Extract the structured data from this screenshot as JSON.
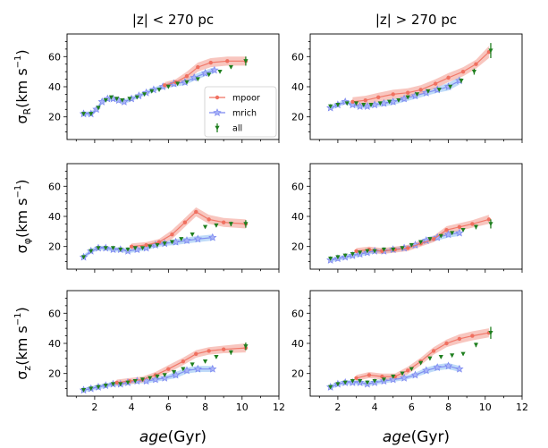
{
  "chart_data": {
    "type": "line",
    "column_titles": [
      "|z| < 270 pc",
      "|z| > 270 pc"
    ],
    "row_ylabels": [
      {
        "sym": "σ",
        "sub": "R",
        "unit": "(km s",
        "sup": "−1",
        "close": ")"
      },
      {
        "sym": "σ",
        "sub": "φ",
        "unit": "(km s",
        "sup": "−1",
        "close": ")"
      },
      {
        "sym": "σ",
        "sub": "z",
        "unit": "(km s",
        "sup": "−1",
        "close": ")"
      }
    ],
    "xlabel": {
      "var": "age",
      "unit": "(Gyr)"
    },
    "xlim": [
      0.5,
      12
    ],
    "ylim": [
      5,
      75
    ],
    "xticks": [
      2,
      4,
      6,
      8,
      10,
      12
    ],
    "yticks": [
      20,
      40,
      60
    ],
    "legend": {
      "placement": "inside lower-right of first panel",
      "entries": [
        "mpoor",
        "mrich",
        "all"
      ]
    },
    "colors": {
      "mpoor": "#f07060",
      "mpoor_band": "#f4a89c",
      "mrich": "#7a86f0",
      "mrich_band": "#9cc8f4",
      "all": "#1f7f1f"
    },
    "panels": [
      {
        "row": 0,
        "col": 0,
        "series": [
          {
            "name": "mpoor",
            "x": [
              5.8,
              6.4,
              7.0,
              7.6,
              8.3,
              9.2,
              10.2
            ],
            "y": [
              41,
              43,
              47,
              53,
              56,
              57,
              57
            ],
            "err": [
              2,
              2,
              3,
              3,
              3,
              3,
              3
            ]
          },
          {
            "name": "mrich",
            "x": [
              1.4,
              1.8,
              2.1,
              2.4,
              2.7,
              3.0,
              3.3,
              3.6,
              4.0,
              4.4,
              4.8,
              5.2,
              5.7,
              6.3,
              6.9,
              7.4,
              8.0,
              8.5
            ],
            "y": [
              22,
              22,
              25,
              30,
              32,
              32,
              31,
              30,
              32,
              34,
              36,
              38,
              40,
              42,
              43,
              46,
              49,
              51
            ],
            "err": [
              1.5,
              1.5,
              1.5,
              1.5,
              1.5,
              1.5,
              1.5,
              1.5,
              1.5,
              1.5,
              1.5,
              1.5,
              1.5,
              2,
              2,
              2,
              2,
              2
            ]
          },
          {
            "name": "all",
            "x": [
              1.4,
              1.8,
              2.2,
              2.6,
              2.9,
              3.2,
              3.5,
              3.9,
              4.3,
              4.7,
              5.1,
              5.5,
              6.0,
              6.5,
              7.0,
              7.6,
              8.2,
              8.8,
              9.4,
              10.2
            ],
            "y": [
              22,
              22,
              26,
              31,
              33,
              32,
              31,
              32,
              33,
              35,
              37,
              38,
              40,
              42,
              43,
              45,
              48,
              50,
              53,
              57
            ],
            "err": [
              0.5,
              0.5,
              0.5,
              0.5,
              0.5,
              0.5,
              0.5,
              0.5,
              0.5,
              0.5,
              0.5,
              0.5,
              0.5,
              0.5,
              0.5,
              0.5,
              0.5,
              0.5,
              1,
              3
            ]
          }
        ]
      },
      {
        "row": 0,
        "col": 1,
        "series": [
          {
            "name": "mpoor",
            "x": [
              2.8,
              3.5,
              4.2,
              5.0,
              5.8,
              6.5,
              7.3,
              8.0,
              8.8,
              9.5,
              10.2
            ],
            "y": [
              30,
              31,
              33,
              35,
              36,
              38,
              42,
              46,
              50,
              55,
              63
            ],
            "err": [
              3,
              3,
              3,
              3,
              3,
              3,
              3,
              3,
              3,
              3,
              4
            ]
          },
          {
            "name": "mrich",
            "x": [
              1.6,
              2.0,
              2.4,
              2.8,
              3.2,
              3.6,
              4.0,
              4.5,
              5.0,
              5.6,
              6.2,
              6.8,
              7.4,
              8.0,
              8.6
            ],
            "y": [
              26,
              28,
              30,
              28,
              27,
              27,
              28,
              29,
              30,
              32,
              34,
              36,
              38,
              40,
              44
            ],
            "err": [
              1.5,
              1.5,
              1.5,
              1.5,
              1.5,
              1.5,
              1.5,
              2,
              2,
              2,
              2,
              2,
              2,
              2.5,
              2.5
            ]
          },
          {
            "name": "all",
            "x": [
              1.6,
              2.0,
              2.5,
              3.0,
              3.4,
              3.8,
              4.3,
              4.8,
              5.3,
              5.8,
              6.3,
              6.9,
              7.5,
              8.1,
              8.7,
              9.4,
              10.3
            ],
            "y": [
              27,
              28,
              29,
              29,
              28,
              28,
              29,
              30,
              31,
              33,
              35,
              37,
              38,
              40,
              44,
              50,
              64
            ],
            "err": [
              1,
              1,
              1,
              1,
              1,
              1,
              1,
              1,
              1,
              1,
              1,
              1,
              1,
              1,
              1.5,
              2,
              5
            ]
          }
        ]
      },
      {
        "row": 1,
        "col": 0,
        "series": [
          {
            "name": "mpoor",
            "x": [
              4.0,
              4.8,
              5.5,
              6.2,
              6.9,
              7.5,
              8.2,
              9.0,
              10.2
            ],
            "y": [
              20,
              21,
              23,
              28,
              36,
              43,
              38,
              36,
              35
            ],
            "err": [
              2,
              2,
              2,
              3,
              3,
              3,
              3,
              3,
              3
            ]
          },
          {
            "name": "mrich",
            "x": [
              1.4,
              1.8,
              2.2,
              2.6,
              3.0,
              3.4,
              3.8,
              4.3,
              4.8,
              5.3,
              5.8,
              6.4,
              7.0,
              7.6,
              8.4
            ],
            "y": [
              13,
              17,
              19,
              19,
              18,
              18,
              17,
              18,
              19,
              21,
              22,
              23,
              24,
              25,
              26
            ],
            "err": [
              1.5,
              1.5,
              1.5,
              1.5,
              1.5,
              1.5,
              1.5,
              1.5,
              1.5,
              1.5,
              1.5,
              2,
              2,
              2,
              2
            ]
          },
          {
            "name": "all",
            "x": [
              1.4,
              1.8,
              2.2,
              2.6,
              3.0,
              3.4,
              3.8,
              4.2,
              4.6,
              5.0,
              5.4,
              5.8,
              6.2,
              6.7,
              7.3,
              8.0,
              8.6,
              9.4,
              10.2
            ],
            "y": [
              13,
              17,
              19,
              19,
              19,
              18,
              18,
              19,
              19,
              20,
              21,
              22,
              23,
              25,
              28,
              33,
              34,
              35,
              35
            ],
            "err": [
              0.5,
              0.5,
              0.5,
              0.5,
              0.5,
              0.5,
              0.5,
              0.5,
              0.5,
              0.5,
              0.5,
              0.5,
              0.5,
              0.5,
              0.5,
              1,
              1,
              1.5,
              2.5
            ]
          }
        ]
      },
      {
        "row": 1,
        "col": 1,
        "series": [
          {
            "name": "mpoor",
            "x": [
              3.0,
              3.7,
              4.4,
              5.1,
              5.8,
              6.5,
              7.2,
              7.9,
              8.6,
              9.3,
              10.2
            ],
            "y": [
              17,
              18,
              17,
              18,
              19,
              22,
              25,
              31,
              33,
              35,
              38
            ],
            "err": [
              2,
              2,
              2,
              2,
              2,
              2,
              2,
              2.5,
              2.5,
              2.5,
              3
            ]
          },
          {
            "name": "mrich",
            "x": [
              1.6,
              2.0,
              2.4,
              2.8,
              3.2,
              3.6,
              4.0,
              4.5,
              5.0,
              5.6,
              6.2,
              6.8,
              7.4,
              8.0,
              8.6
            ],
            "y": [
              11,
              12,
              13,
              14,
              15,
              16,
              17,
              17,
              18,
              19,
              21,
              24,
              26,
              28,
              29
            ],
            "err": [
              1.5,
              1.5,
              1.5,
              1.5,
              1.5,
              1.5,
              1.5,
              1.5,
              1.5,
              1.5,
              1.5,
              2,
              2,
              2,
              2
            ]
          },
          {
            "name": "all",
            "x": [
              1.6,
              2.0,
              2.4,
              2.8,
              3.2,
              3.6,
              4.0,
              4.5,
              5.0,
              5.5,
              6.0,
              6.5,
              7.0,
              7.6,
              8.2,
              8.8,
              9.5,
              10.3
            ],
            "y": [
              12,
              13,
              14,
              15,
              16,
              17,
              17,
              18,
              18,
              19,
              21,
              23,
              25,
              27,
              29,
              31,
              33,
              35
            ],
            "err": [
              0.5,
              0.5,
              0.5,
              0.5,
              0.5,
              0.5,
              0.5,
              0.5,
              0.5,
              0.5,
              0.5,
              0.5,
              0.5,
              0.5,
              1,
              1,
              1.5,
              3
            ]
          }
        ]
      },
      {
        "row": 2,
        "col": 0,
        "series": [
          {
            "name": "mpoor",
            "x": [
              3.2,
              3.9,
              4.6,
              5.3,
              6.0,
              6.8,
              7.5,
              8.2,
              9.0,
              10.2
            ],
            "y": [
              14,
              15,
              16,
              19,
              23,
              28,
              33,
              35,
              36,
              37
            ],
            "err": [
              2,
              2,
              2,
              2,
              2.5,
              2.5,
              2.5,
              2.5,
              2.5,
              3
            ]
          },
          {
            "name": "mrich",
            "x": [
              1.4,
              1.8,
              2.2,
              2.6,
              3.0,
              3.4,
              3.8,
              4.3,
              4.8,
              5.3,
              5.8,
              6.4,
              7.0,
              7.6,
              8.4
            ],
            "y": [
              9,
              10,
              11,
              12,
              13,
              13,
              14,
              15,
              15,
              16,
              17,
              19,
              22,
              23,
              23
            ],
            "err": [
              1.5,
              1.5,
              1.5,
              1.5,
              1.5,
              1.5,
              1.5,
              1.5,
              1.5,
              1.5,
              1.5,
              2,
              2,
              2,
              2
            ]
          },
          {
            "name": "all",
            "x": [
              1.4,
              1.8,
              2.2,
              2.6,
              3.0,
              3.4,
              3.8,
              4.2,
              4.6,
              5.0,
              5.4,
              5.8,
              6.3,
              6.8,
              7.3,
              8.0,
              8.6,
              9.4,
              10.2
            ],
            "y": [
              9,
              10,
              11,
              12,
              13,
              13,
              14,
              15,
              16,
              17,
              18,
              19,
              21,
              23,
              26,
              28,
              31,
              34,
              38
            ],
            "err": [
              0.5,
              0.5,
              0.5,
              0.5,
              0.5,
              0.5,
              0.5,
              0.5,
              0.5,
              0.5,
              0.5,
              0.5,
              0.5,
              0.5,
              1,
              1,
              1,
              1.5,
              2.5
            ]
          }
        ]
      },
      {
        "row": 2,
        "col": 1,
        "series": [
          {
            "name": "mpoor",
            "x": [
              3.0,
              3.7,
              4.4,
              5.1,
              5.8,
              6.5,
              7.2,
              7.9,
              8.6,
              9.3,
              10.2
            ],
            "y": [
              17,
              19,
              18,
              18,
              22,
              28,
              35,
              40,
              43,
              45,
              47
            ],
            "err": [
              2,
              2,
              2,
              2,
              2.5,
              2.5,
              2.5,
              2.5,
              3,
              3,
              3
            ]
          },
          {
            "name": "mrich",
            "x": [
              1.6,
              2.0,
              2.4,
              2.8,
              3.2,
              3.6,
              4.0,
              4.5,
              5.0,
              5.6,
              6.2,
              6.8,
              7.4,
              8.0,
              8.6
            ],
            "y": [
              11,
              13,
              14,
              14,
              14,
              13,
              14,
              15,
              16,
              17,
              19,
              22,
              24,
              25,
              23
            ],
            "err": [
              1.5,
              1.5,
              1.5,
              1.5,
              1.5,
              1.5,
              1.5,
              1.5,
              1.5,
              1.5,
              1.5,
              2,
              2,
              2,
              2
            ]
          },
          {
            "name": "all",
            "x": [
              1.6,
              2.0,
              2.4,
              2.8,
              3.2,
              3.6,
              4.0,
              4.5,
              5.0,
              5.5,
              6.0,
              6.5,
              7.0,
              7.6,
              8.2,
              8.8,
              9.5,
              10.3
            ],
            "y": [
              11,
              13,
              14,
              15,
              15,
              14,
              15,
              16,
              18,
              20,
              23,
              27,
              30,
              31,
              32,
              33,
              39,
              47
            ],
            "err": [
              0.5,
              0.5,
              0.5,
              0.5,
              0.5,
              0.5,
              0.5,
              0.5,
              0.5,
              0.5,
              0.5,
              0.5,
              1,
              1,
              1,
              1,
              1.5,
              4
            ]
          }
        ]
      }
    ]
  }
}
